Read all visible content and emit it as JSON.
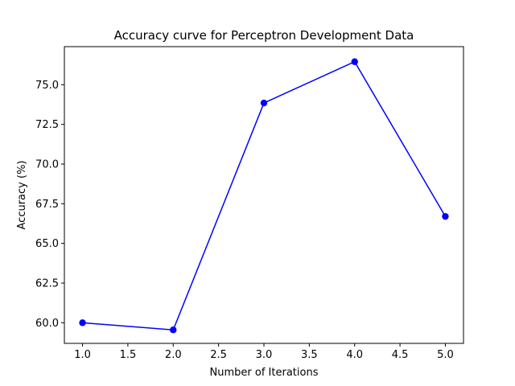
{
  "chart_data": {
    "type": "line",
    "title": "Accuracy curve for Perceptron Development Data",
    "xlabel": "Number of Iterations",
    "ylabel": "Accuracy (%)",
    "x": [
      1,
      2,
      3,
      4,
      5
    ],
    "series": [
      {
        "values": [
          60.0,
          59.55,
          73.85,
          76.45,
          66.7
        ],
        "color": "#0000ff",
        "marker": "circle"
      }
    ],
    "xlim": [
      0.8,
      5.2
    ],
    "ylim": [
      58.7,
      77.4
    ],
    "xticks": [
      "1.0",
      "1.5",
      "2.0",
      "2.5",
      "3.0",
      "3.5",
      "4.0",
      "4.5",
      "5.0"
    ],
    "yticks": [
      "60.0",
      "62.5",
      "65.0",
      "67.5",
      "70.0",
      "72.5",
      "75.0"
    ],
    "grid": false,
    "legend": false
  }
}
